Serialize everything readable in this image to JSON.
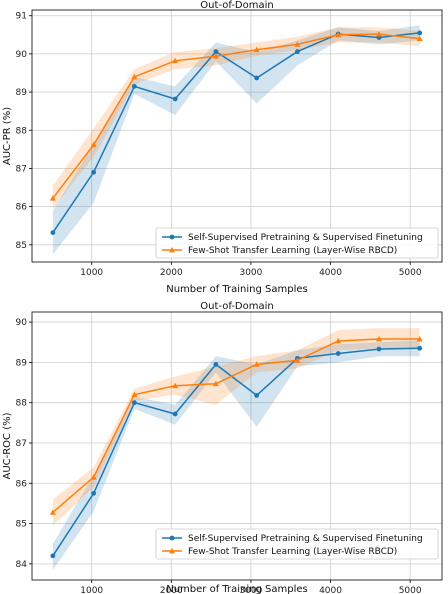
{
  "chart_data": [
    {
      "type": "line",
      "title": "Out-of-Domain",
      "xlabel": "Number of Training Samples",
      "ylabel": "AUC-PR (%)",
      "xlim": [
        250,
        5400
      ],
      "ylim": [
        84.55,
        91.15
      ],
      "xticks": [
        1000,
        2000,
        3000,
        4000,
        5000
      ],
      "yticks": [
        85,
        86,
        87,
        88,
        89,
        90,
        91
      ],
      "grid": true,
      "legend_position": "lower-right",
      "x": [
        512,
        1024,
        1536,
        2048,
        2560,
        3072,
        3584,
        4096,
        4608,
        5120
      ],
      "series": [
        {
          "name": "Self-Supervised Pretraining & Supervised Finetuning",
          "color": "#1f77b4",
          "marker": "circle",
          "values": [
            85.32,
            86.9,
            89.15,
            88.82,
            90.06,
            89.37,
            90.06,
            90.52,
            90.43,
            90.55
          ],
          "lower": [
            84.75,
            86.1,
            88.95,
            88.4,
            89.8,
            88.7,
            89.7,
            90.35,
            90.25,
            90.35
          ],
          "upper": [
            85.9,
            87.65,
            89.4,
            89.15,
            90.3,
            90.05,
            90.35,
            90.7,
            90.6,
            90.75
          ]
        },
        {
          "name": "Few-Shot Transfer Learning (Layer-Wise RBCD)",
          "color": "#ff7f0e",
          "marker": "triangle",
          "values": [
            86.22,
            87.62,
            89.4,
            89.82,
            89.94,
            90.11,
            90.25,
            90.5,
            90.52,
            90.4
          ],
          "lower": [
            85.95,
            87.3,
            89.2,
            89.6,
            89.7,
            89.95,
            90.1,
            90.3,
            90.3,
            90.2
          ],
          "upper": [
            86.55,
            88.05,
            89.6,
            90.05,
            90.15,
            90.3,
            90.45,
            90.7,
            90.7,
            90.6
          ]
        }
      ]
    },
    {
      "type": "line",
      "title": "Out-of-Domain",
      "xlabel": "Number of Training Samples",
      "ylabel": "AUC-ROC (%)",
      "xlim": [
        250,
        5400
      ],
      "ylim": [
        83.6,
        90.25
      ],
      "xticks": [
        1000,
        2000,
        3000,
        4000,
        5000
      ],
      "yticks": [
        84,
        85,
        86,
        87,
        88,
        89,
        90
      ],
      "grid": true,
      "legend_position": "lower-right",
      "x": [
        512,
        1024,
        1536,
        2048,
        2560,
        3072,
        3584,
        4096,
        4608,
        5120
      ],
      "series": [
        {
          "name": "Self-Supervised Pretraining & Supervised Finetuning",
          "color": "#1f77b4",
          "marker": "circle",
          "values": [
            84.2,
            85.75,
            88.0,
            87.72,
            88.95,
            88.18,
            89.1,
            89.22,
            89.33,
            89.35
          ],
          "lower": [
            83.85,
            85.3,
            87.85,
            87.45,
            88.75,
            87.4,
            88.9,
            89.0,
            89.15,
            89.15
          ],
          "upper": [
            84.5,
            86.2,
            88.15,
            87.95,
            89.15,
            88.95,
            89.3,
            89.45,
            89.5,
            89.55
          ]
        },
        {
          "name": "Few-Shot Transfer Learning (Layer-Wise RBCD)",
          "color": "#ff7f0e",
          "marker": "triangle",
          "values": [
            85.28,
            86.15,
            88.2,
            88.42,
            88.47,
            88.95,
            89.05,
            89.53,
            89.58,
            89.58
          ],
          "lower": [
            84.95,
            85.9,
            88.05,
            88.2,
            87.95,
            88.75,
            88.85,
            89.3,
            89.35,
            89.35
          ],
          "upper": [
            85.6,
            86.4,
            88.35,
            88.65,
            88.9,
            89.15,
            89.3,
            89.8,
            89.85,
            89.85
          ]
        }
      ]
    }
  ]
}
